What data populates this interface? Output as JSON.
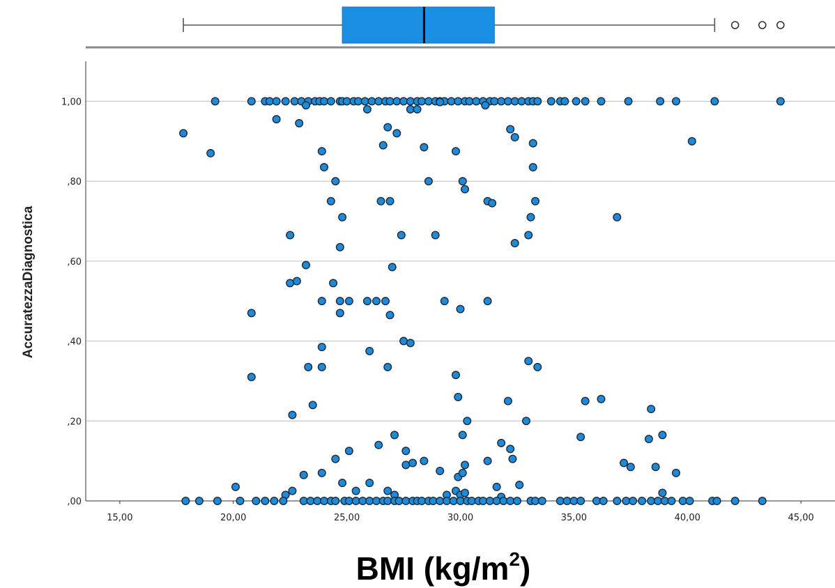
{
  "chart_data": {
    "type": "scatter",
    "title": "",
    "xlabel_main": "BMI (kg/m",
    "xlabel_sup": "2",
    "xlabel_close": ")",
    "ylabel": "AccuratezzaDiagnostica",
    "xlim": [
      13.5,
      46.5
    ],
    "ylim": [
      0,
      1.1
    ],
    "x_ticks": [
      15,
      20,
      25,
      30,
      35,
      40,
      45
    ],
    "x_tick_labels": [
      "15,00",
      "20,00",
      "25,00",
      "30,00",
      "35,00",
      "40,00",
      "45,00"
    ],
    "y_ticks": [
      0,
      0.2,
      0.4,
      0.6,
      0.8,
      1.0
    ],
    "y_tick_labels": [
      ",00",
      ",20",
      ",40",
      ",60",
      ",80",
      "1,00"
    ],
    "grid": "horizontal",
    "marker_color": "#1f8ad8",
    "boxplot": {
      "whisker_low": 17.8,
      "q1": 24.8,
      "median": 28.4,
      "q3": 31.5,
      "whisker_high": 41.2,
      "outliers": [
        42.1,
        43.3,
        44.1
      ],
      "box_color": "#1a8fe3"
    },
    "points": [
      [
        19.2,
        1.0
      ],
      [
        20.8,
        1.0
      ],
      [
        21.4,
        1.0
      ],
      [
        21.6,
        1.0
      ],
      [
        21.9,
        1.0
      ],
      [
        22.3,
        1.0
      ],
      [
        22.7,
        1.0
      ],
      [
        23.0,
        1.0
      ],
      [
        23.3,
        1.0
      ],
      [
        23.6,
        1.0
      ],
      [
        23.8,
        1.0
      ],
      [
        24.0,
        1.0
      ],
      [
        24.3,
        1.0
      ],
      [
        24.7,
        1.0
      ],
      [
        24.8,
        1.0
      ],
      [
        25.0,
        1.0
      ],
      [
        25.3,
        1.0
      ],
      [
        25.5,
        1.0
      ],
      [
        25.8,
        1.0
      ],
      [
        26.1,
        1.0
      ],
      [
        26.4,
        1.0
      ],
      [
        26.7,
        1.0
      ],
      [
        26.9,
        1.0
      ],
      [
        27.2,
        1.0
      ],
      [
        27.5,
        1.0
      ],
      [
        27.8,
        1.0
      ],
      [
        28.1,
        1.0
      ],
      [
        28.3,
        1.0
      ],
      [
        28.6,
        1.0
      ],
      [
        28.9,
        1.0
      ],
      [
        29.1,
        1.0
      ],
      [
        29.3,
        1.0
      ],
      [
        29.6,
        1.0
      ],
      [
        29.9,
        1.0
      ],
      [
        30.2,
        1.0
      ],
      [
        30.4,
        1.0
      ],
      [
        30.7,
        1.0
      ],
      [
        31.0,
        1.0
      ],
      [
        31.3,
        1.0
      ],
      [
        31.5,
        1.0
      ],
      [
        31.8,
        1.0
      ],
      [
        32.1,
        1.0
      ],
      [
        32.4,
        1.0
      ],
      [
        32.7,
        1.0
      ],
      [
        33.0,
        1.0
      ],
      [
        33.2,
        1.0
      ],
      [
        33.4,
        1.0
      ],
      [
        34.0,
        1.0
      ],
      [
        34.4,
        1.0
      ],
      [
        34.6,
        1.0
      ],
      [
        35.1,
        1.0
      ],
      [
        35.5,
        1.0
      ],
      [
        36.2,
        1.0
      ],
      [
        37.4,
        1.0
      ],
      [
        38.8,
        1.0
      ],
      [
        39.5,
        1.0
      ],
      [
        41.2,
        1.0
      ],
      [
        44.1,
        1.0
      ],
      [
        17.8,
        0.92
      ],
      [
        19.0,
        0.87
      ],
      [
        21.9,
        0.955
      ],
      [
        22.9,
        0.945
      ],
      [
        23.2,
        0.99
      ],
      [
        25.9,
        0.98
      ],
      [
        26.8,
        0.935
      ],
      [
        27.2,
        0.92
      ],
      [
        26.6,
        0.89
      ],
      [
        27.8,
        0.98
      ],
      [
        28.1,
        0.98
      ],
      [
        29.1,
        0.998
      ],
      [
        31.1,
        0.99
      ],
      [
        32.2,
        0.93
      ],
      [
        32.4,
        0.91
      ],
      [
        33.2,
        0.895
      ],
      [
        40.2,
        0.9
      ],
      [
        28.4,
        0.885
      ],
      [
        29.8,
        0.875
      ],
      [
        23.9,
        0.875
      ],
      [
        24.0,
        0.835
      ],
      [
        33.2,
        0.835
      ],
      [
        24.5,
        0.8
      ],
      [
        28.6,
        0.8
      ],
      [
        30.1,
        0.8
      ],
      [
        30.2,
        0.78
      ],
      [
        24.3,
        0.75
      ],
      [
        26.5,
        0.75
      ],
      [
        26.9,
        0.75
      ],
      [
        31.2,
        0.75
      ],
      [
        31.4,
        0.745
      ],
      [
        33.3,
        0.75
      ],
      [
        24.8,
        0.71
      ],
      [
        33.1,
        0.71
      ],
      [
        36.9,
        0.71
      ],
      [
        22.5,
        0.665
      ],
      [
        27.4,
        0.665
      ],
      [
        28.9,
        0.665
      ],
      [
        33.0,
        0.665
      ],
      [
        32.4,
        0.645
      ],
      [
        24.7,
        0.635
      ],
      [
        23.2,
        0.59
      ],
      [
        27.0,
        0.585
      ],
      [
        22.5,
        0.545
      ],
      [
        22.8,
        0.55
      ],
      [
        24.4,
        0.545
      ],
      [
        23.9,
        0.5
      ],
      [
        24.7,
        0.5
      ],
      [
        25.1,
        0.5
      ],
      [
        25.9,
        0.5
      ],
      [
        26.3,
        0.5
      ],
      [
        26.7,
        0.5
      ],
      [
        29.3,
        0.5
      ],
      [
        31.2,
        0.5
      ],
      [
        20.8,
        0.47
      ],
      [
        24.7,
        0.47
      ],
      [
        26.9,
        0.465
      ],
      [
        30.0,
        0.48
      ],
      [
        27.5,
        0.4
      ],
      [
        27.8,
        0.395
      ],
      [
        23.9,
        0.385
      ],
      [
        26.0,
        0.375
      ],
      [
        23.3,
        0.335
      ],
      [
        23.9,
        0.335
      ],
      [
        26.8,
        0.335
      ],
      [
        33.4,
        0.335
      ],
      [
        33.0,
        0.35
      ],
      [
        20.8,
        0.31
      ],
      [
        29.8,
        0.315
      ],
      [
        29.9,
        0.26
      ],
      [
        23.5,
        0.24
      ],
      [
        22.6,
        0.215
      ],
      [
        32.1,
        0.25
      ],
      [
        35.5,
        0.25
      ],
      [
        36.2,
        0.255
      ],
      [
        38.4,
        0.23
      ],
      [
        30.3,
        0.2
      ],
      [
        32.9,
        0.2
      ],
      [
        30.1,
        0.165
      ],
      [
        27.1,
        0.165
      ],
      [
        35.3,
        0.16
      ],
      [
        38.3,
        0.155
      ],
      [
        38.9,
        0.165
      ],
      [
        26.4,
        0.14
      ],
      [
        31.8,
        0.145
      ],
      [
        27.6,
        0.125
      ],
      [
        25.1,
        0.125
      ],
      [
        24.5,
        0.105
      ],
      [
        27.6,
        0.09
      ],
      [
        27.9,
        0.095
      ],
      [
        28.4,
        0.1
      ],
      [
        30.2,
        0.09
      ],
      [
        31.2,
        0.1
      ],
      [
        32.3,
        0.105
      ],
      [
        32.2,
        0.13
      ],
      [
        37.2,
        0.095
      ],
      [
        37.5,
        0.085
      ],
      [
        38.6,
        0.085
      ],
      [
        29.1,
        0.075
      ],
      [
        23.9,
        0.07
      ],
      [
        23.1,
        0.065
      ],
      [
        29.9,
        0.06
      ],
      [
        30.1,
        0.07
      ],
      [
        24.8,
        0.045
      ],
      [
        26.0,
        0.045
      ],
      [
        31.6,
        0.035
      ],
      [
        32.6,
        0.04
      ],
      [
        39.5,
        0.07
      ],
      [
        20.1,
        0.035
      ],
      [
        22.3,
        0.015
      ],
      [
        22.6,
        0.025
      ],
      [
        25.4,
        0.025
      ],
      [
        26.8,
        0.025
      ],
      [
        27.1,
        0.015
      ],
      [
        29.4,
        0.015
      ],
      [
        29.8,
        0.025
      ],
      [
        30.0,
        0.015
      ],
      [
        30.2,
        0.02
      ],
      [
        31.8,
        0.01
      ],
      [
        38.9,
        0.02
      ],
      [
        17.9,
        0.0
      ],
      [
        18.5,
        0.0
      ],
      [
        19.3,
        0.0
      ],
      [
        20.3,
        0.0
      ],
      [
        21.0,
        0.0
      ],
      [
        21.4,
        0.0
      ],
      [
        21.8,
        0.0
      ],
      [
        22.2,
        0.0
      ],
      [
        23.1,
        0.0
      ],
      [
        23.4,
        0.0
      ],
      [
        23.7,
        0.0
      ],
      [
        24.0,
        0.0
      ],
      [
        24.3,
        0.0
      ],
      [
        24.5,
        0.0
      ],
      [
        24.9,
        0.0
      ],
      [
        25.1,
        0.0
      ],
      [
        25.4,
        0.0
      ],
      [
        25.7,
        0.0
      ],
      [
        26.0,
        0.0
      ],
      [
        26.3,
        0.0
      ],
      [
        26.6,
        0.0
      ],
      [
        26.8,
        0.0
      ],
      [
        27.1,
        0.0
      ],
      [
        27.3,
        0.0
      ],
      [
        27.6,
        0.0
      ],
      [
        27.9,
        0.0
      ],
      [
        28.1,
        0.0
      ],
      [
        28.3,
        0.0
      ],
      [
        28.6,
        0.0
      ],
      [
        28.8,
        0.0
      ],
      [
        29.1,
        0.0
      ],
      [
        29.4,
        0.0
      ],
      [
        29.7,
        0.0
      ],
      [
        30.0,
        0.0
      ],
      [
        30.3,
        0.0
      ],
      [
        30.5,
        0.0
      ],
      [
        30.8,
        0.0
      ],
      [
        31.0,
        0.0
      ],
      [
        31.3,
        0.0
      ],
      [
        31.6,
        0.0
      ],
      [
        31.9,
        0.0
      ],
      [
        32.2,
        0.0
      ],
      [
        32.5,
        0.0
      ],
      [
        33.1,
        0.0
      ],
      [
        33.3,
        0.0
      ],
      [
        33.6,
        0.0
      ],
      [
        34.4,
        0.0
      ],
      [
        34.7,
        0.0
      ],
      [
        35.0,
        0.0
      ],
      [
        35.3,
        0.0
      ],
      [
        36.0,
        0.0
      ],
      [
        36.3,
        0.0
      ],
      [
        36.9,
        0.0
      ],
      [
        37.3,
        0.0
      ],
      [
        37.6,
        0.0
      ],
      [
        38.0,
        0.0
      ],
      [
        38.4,
        0.0
      ],
      [
        38.7,
        0.0
      ],
      [
        39.0,
        0.0
      ],
      [
        39.3,
        0.0
      ],
      [
        39.8,
        0.0
      ],
      [
        40.1,
        0.0
      ],
      [
        41.1,
        0.0
      ],
      [
        41.3,
        0.0
      ],
      [
        42.1,
        0.0
      ],
      [
        43.3,
        0.0
      ]
    ]
  }
}
